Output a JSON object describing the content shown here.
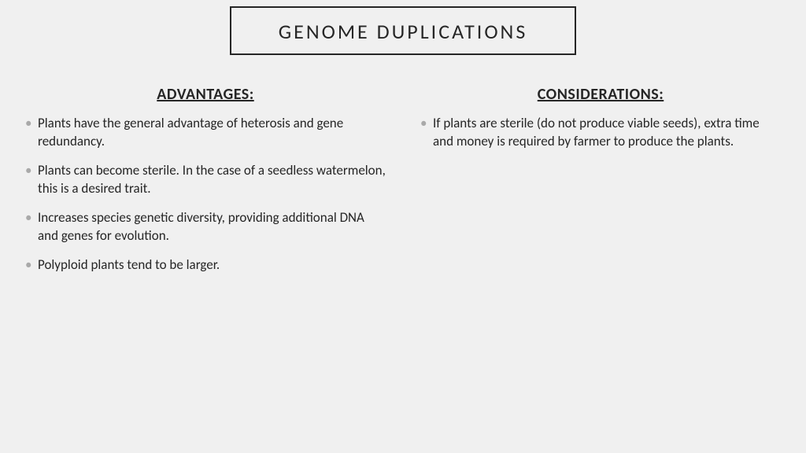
{
  "title": "GENOME DUPLICATIONS",
  "left": {
    "heading": "ADVANTAGES:",
    "items": [
      "Plants have the general advantage of heterosis and gene redundancy.",
      "Plants can become sterile. In the case of a seedless watermelon, this is a desired trait.",
      "Increases species genetic diversity, providing additional DNA and genes for evolution.",
      "Polyploid plants tend to be larger."
    ]
  },
  "right": {
    "heading": "CONSIDERATIONS:",
    "items": [
      "If plants are sterile (do not produce viable seeds), extra time and money is required by farmer to produce the plants."
    ]
  },
  "style": {
    "background_color": "#f0f0f0",
    "text_color": "#262626",
    "bullet_color": "#a9a9a9",
    "border_color": "#262626",
    "title_fontsize": 26,
    "title_letter_spacing": 3,
    "heading_fontsize": 20,
    "body_fontsize": 17
  }
}
